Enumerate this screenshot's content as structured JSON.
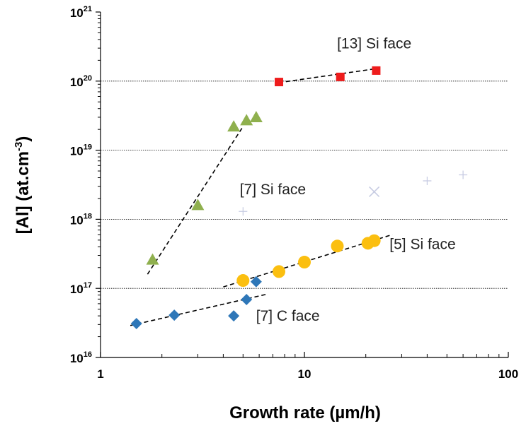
{
  "chart_data": {
    "type": "scatter",
    "title": "",
    "xlabel": "Growth rate (µm/h)",
    "ylabel": {
      "main": "[Al] (at.cm",
      "sup": "-3",
      "end": ")"
    },
    "xscale": "log",
    "yscale": "log",
    "xlim": [
      1,
      100
    ],
    "ylim": [
      1e+16,
      1e+21
    ],
    "x_tick_labels": [
      "1",
      "10",
      "100"
    ],
    "y_tick_labels": [
      {
        "base": "10",
        "exp": "16"
      },
      {
        "base": "10",
        "exp": "17"
      },
      {
        "base": "10",
        "exp": "18"
      },
      {
        "base": "10",
        "exp": "19"
      },
      {
        "base": "10",
        "exp": "20"
      },
      {
        "base": "10",
        "exp": "21"
      }
    ],
    "grid": "horizontal dotted lines at 1e17, 1e18, 1e19, 1e20",
    "series": [
      {
        "marker": "square",
        "color": "#ee1c1c",
        "points": [
          [
            7.5,
            9.7e+19
          ],
          [
            15,
            1.15e+20
          ],
          [
            22.5,
            1.42e+20
          ]
        ],
        "trend": [
          [
            7.5,
            9.5e+19
          ],
          [
            22,
            1.5e+20
          ]
        ]
      },
      {
        "marker": "triangle",
        "color": "#8fb04e",
        "points": [
          [
            1.8,
            2.6e+17
          ],
          [
            3.0,
            1.6e+18
          ],
          [
            4.5,
            2.2e+19
          ],
          [
            5.2,
            2.7e+19
          ],
          [
            5.8,
            3e+19
          ]
        ],
        "trend": [
          [
            1.7,
            1.6e+17
          ],
          [
            5.0,
            2.2e+19
          ]
        ]
      },
      {
        "marker": "circle",
        "color": "#fbbf10",
        "points": [
          [
            5.0,
            1.3e+17
          ],
          [
            7.5,
            1.75e+17
          ],
          [
            10,
            2.4e+17
          ],
          [
            14.5,
            4.1e+17
          ],
          [
            20.5,
            4.5e+17
          ],
          [
            22,
            4.9e+17
          ]
        ],
        "trend": [
          [
            4.0,
            1.05e+17
          ],
          [
            27,
            6e+17
          ]
        ]
      },
      {
        "marker": "diamond",
        "color": "#2e77b8",
        "points": [
          [
            1.5,
            3.1e+16
          ],
          [
            2.3,
            4.1e+16
          ],
          [
            4.5,
            4e+16
          ],
          [
            5.2,
            6.9e+16
          ],
          [
            5.8,
            1.25e+17
          ]
        ],
        "trend": [
          [
            1.4,
            2.9e+16
          ],
          [
            6.5,
            8.2e+16
          ]
        ]
      },
      {
        "marker": "x",
        "color": "#c6cbe2",
        "points": [
          [
            22,
            2.5e+18
          ]
        ]
      },
      {
        "marker": "plus",
        "color": "#c6cbe2",
        "points": [
          [
            5.0,
            1.3e+18
          ],
          [
            40,
            3.6e+18
          ],
          [
            60,
            4.4e+18
          ]
        ]
      }
    ],
    "annotations": [
      {
        "text": "[13] Si face",
        "x": 22,
        "y": 3.5e+20
      },
      {
        "text": "[7] Si face",
        "x": 7,
        "y": 2.7e+18
      },
      {
        "text": "[5] Si face",
        "x": 38,
        "y": 4.4e+17
      },
      {
        "text": "[7] C face",
        "x": 8.3,
        "y": 4e+16
      }
    ]
  }
}
